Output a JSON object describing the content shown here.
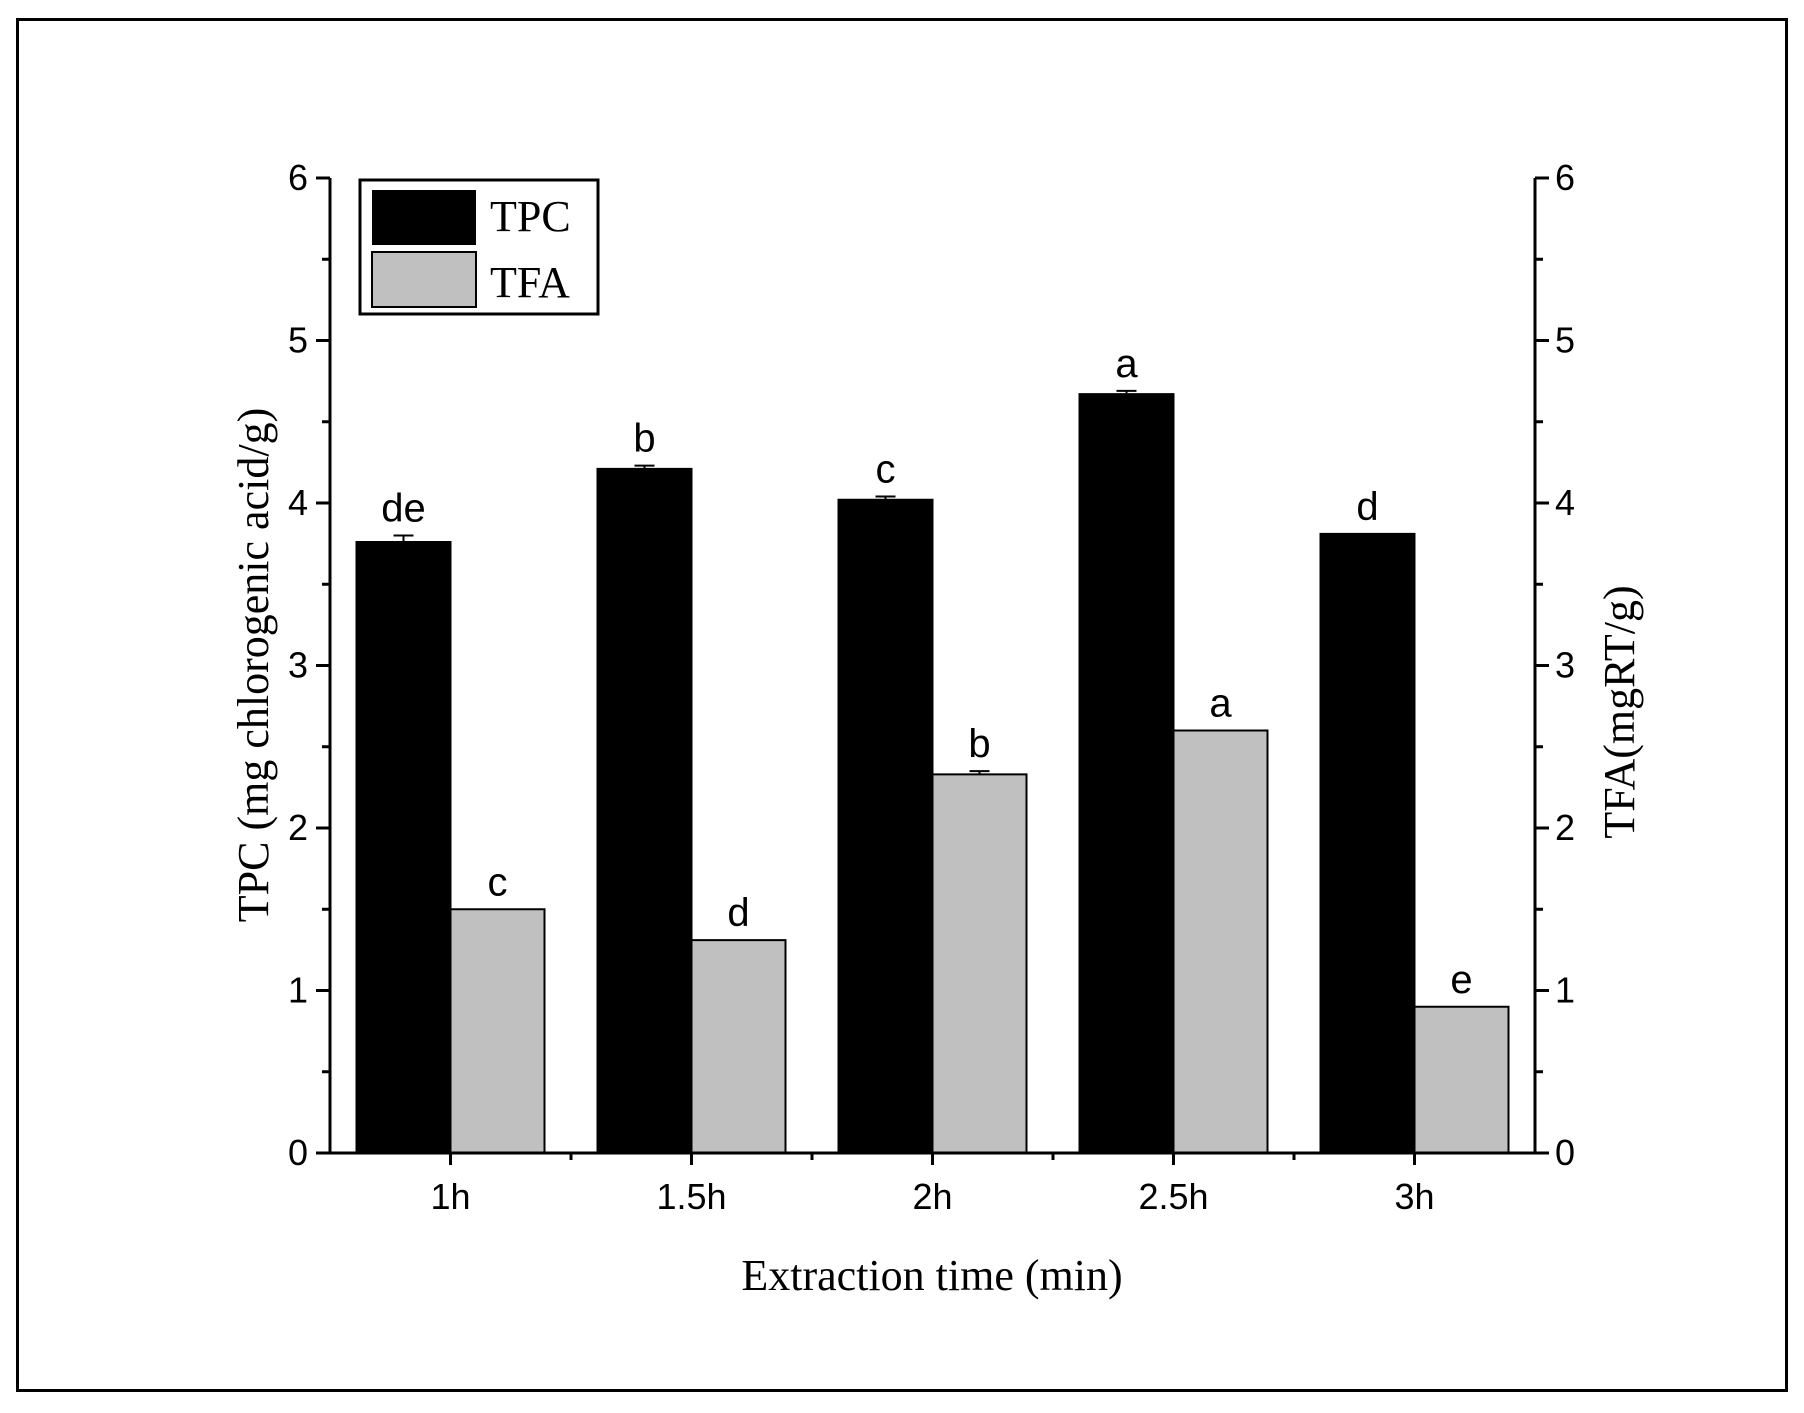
{
  "chart_data": {
    "type": "bar",
    "title": "",
    "xlabel": "Extraction time (min)",
    "ylabel": "TPC (mg chlorogenic acid/g)",
    "y2label": "TFA(mgRT/g)",
    "categories": [
      "1h",
      "1.5h",
      "2h",
      "2.5h",
      "3h"
    ],
    "ylim": [
      0,
      6
    ],
    "y2lim": [
      0,
      6
    ],
    "yticks": [
      "0",
      "1",
      "2",
      "3",
      "4",
      "5",
      "6"
    ],
    "y2ticks": [
      "0",
      "1",
      "2",
      "3",
      "4",
      "5",
      "6"
    ],
    "legend_position": "top-left",
    "grid": false,
    "series": [
      {
        "name": "TPC",
        "color": "#000000",
        "values": [
          3.76,
          4.21,
          4.02,
          4.67,
          3.81
        ],
        "errors": [
          0.04,
          0.02,
          0.02,
          0.02,
          0.0
        ],
        "labels": [
          "de",
          "b",
          "c",
          "a",
          "d"
        ]
      },
      {
        "name": "TFA",
        "color": "#c0c0c0",
        "values": [
          1.5,
          1.31,
          2.33,
          2.6,
          0.9
        ],
        "errors": [
          0.0,
          0.0,
          0.02,
          0.0,
          0.0
        ],
        "labels": [
          "c",
          "d",
          "b",
          "a",
          "e"
        ]
      }
    ]
  }
}
